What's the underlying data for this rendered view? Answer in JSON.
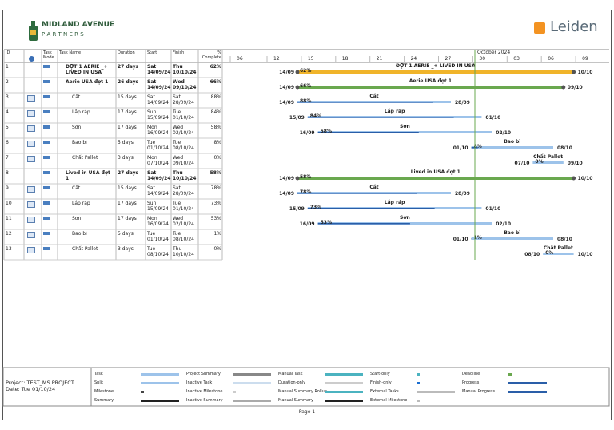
{
  "header": {
    "logo_name": "MIDLAND AVENUE",
    "logo_sub": "P A R T N E R S",
    "brand": "Leiden"
  },
  "table": {
    "columns": [
      "ID",
      "",
      "Task Mode",
      "Task Name",
      "Duration",
      "Start",
      "Finish",
      "% Complete"
    ],
    "rows": [
      {
        "id": "1",
        "name": "ĐỢT 1 AERIE _+ LIVED IN USA",
        "duration": "27 days",
        "start": "Sat 14/09/24",
        "finish": "Thu 10/10/24",
        "complete": "62%",
        "summary": true,
        "bar_start": "14/09",
        "bar_end": "10/10"
      },
      {
        "id": "2",
        "name": "Aerie USA đợt 1",
        "duration": "26 days",
        "start": "Sat 14/09/24",
        "finish": "Wed 09/10/24",
        "complete": "66%",
        "summary": true,
        "bar_start": "14/09",
        "bar_end": "09/10"
      },
      {
        "id": "3",
        "name": "Cắt",
        "duration": "15 days",
        "start": "Sat 14/09/24",
        "finish": "Sat 28/09/24",
        "complete": "88%",
        "summary": false,
        "bar_start": "14/09",
        "bar_end": "28/09"
      },
      {
        "id": "4",
        "name": "Lắp ráp",
        "duration": "17 days",
        "start": "Sun 15/09/24",
        "finish": "Tue 01/10/24",
        "complete": "84%",
        "summary": false,
        "bar_start": "15/09",
        "bar_end": "01/10"
      },
      {
        "id": "5",
        "name": "Sơn",
        "duration": "17 days",
        "start": "Mon 16/09/24",
        "finish": "Wed 02/10/24",
        "complete": "58%",
        "summary": false,
        "bar_start": "16/09",
        "bar_end": "02/10"
      },
      {
        "id": "6",
        "name": "Bao bì",
        "duration": "5 days",
        "start": "Tue 01/10/24",
        "finish": "Tue 08/10/24",
        "complete": "8%",
        "summary": false,
        "bar_start": "01/10",
        "bar_end": "08/10"
      },
      {
        "id": "7",
        "name": "Chất Pallet",
        "duration": "3 days",
        "start": "Mon 07/10/24",
        "finish": "Wed 09/10/24",
        "complete": "0%",
        "summary": false,
        "bar_start": "07/10",
        "bar_end": "09/10"
      },
      {
        "id": "8",
        "name": "Lived in USA đợt 1",
        "duration": "27 days",
        "start": "Sat 14/09/24",
        "finish": "Thu 10/10/24",
        "complete": "58%",
        "summary": true,
        "bar_start": "14/09",
        "bar_end": "10/10"
      },
      {
        "id": "9",
        "name": "Cắt",
        "duration": "15 days",
        "start": "Sat 14/09/24",
        "finish": "Sat 28/09/24",
        "complete": "78%",
        "summary": false,
        "bar_start": "14/09",
        "bar_end": "28/09"
      },
      {
        "id": "10",
        "name": "Lắp ráp",
        "duration": "17 days",
        "start": "Sun 15/09/24",
        "finish": "Tue 01/10/24",
        "complete": "73%",
        "summary": false,
        "bar_start": "15/09",
        "bar_end": "01/10"
      },
      {
        "id": "11",
        "name": "Sơn",
        "duration": "17 days",
        "start": "Mon 16/09/24",
        "finish": "Wed 02/10/24",
        "complete": "53%",
        "summary": false,
        "bar_start": "16/09",
        "bar_end": "02/10"
      },
      {
        "id": "12",
        "name": "Bao bì",
        "duration": "5 days",
        "start": "Tue 01/10/24",
        "finish": "Tue 08/10/24",
        "complete": "1%",
        "summary": false,
        "bar_start": "01/10",
        "bar_end": "08/10"
      },
      {
        "id": "13",
        "name": "Chất Pallet",
        "duration": "3 days",
        "start": "Tue 08/10/24",
        "finish": "Thu 10/10/24",
        "complete": "0%",
        "summary": false,
        "bar_start": "08/10",
        "bar_end": "10/10"
      }
    ]
  },
  "timeline": {
    "month": "October 2024",
    "ticks": [
      "06",
      "12",
      "15",
      "18",
      "21",
      "24",
      "27",
      "30",
      "03",
      "06",
      "09"
    ]
  },
  "footer": {
    "project": "Project: TEST_MS PROJECT",
    "date": "Date: Tue 01/10/24",
    "page": "Page 1",
    "legend": [
      "Task",
      "Split",
      "Milestone",
      "Summary",
      "Project Summary",
      "Inactive Task",
      "Inactive Milestone",
      "Inactive Summary",
      "Manual Task",
      "Duration-only",
      "Manual Summary Rollup",
      "Manual Summary",
      "Start-only",
      "Finish-only",
      "External Tasks",
      "External Milestone",
      "Deadline",
      "Progress",
      "Manual Progress"
    ]
  }
}
